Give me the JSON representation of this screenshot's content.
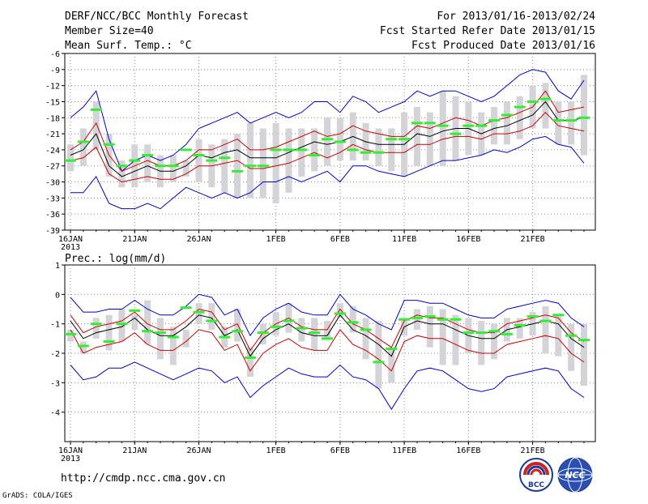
{
  "header": {
    "title": "DERF/NCC/BCC Monthly Forecast",
    "member_size": "Member Size=40",
    "variable": "Mean Surf. Temp.: °C",
    "period": "For 2013/01/16-2013/02/24",
    "started": "Fcst Started Refer Date 2013/01/15",
    "produced": "Fcst Produced Date 2013/01/16"
  },
  "footer": {
    "url": "http://cmdp.ncc.cma.gov.cn",
    "grads": "GrADS: COLA/IGES",
    "logo_left_text": "BCC",
    "logo_right_text": "NCC"
  },
  "colors": {
    "envelope": "#0000cc",
    "spread": "#cc0000",
    "mean": "#000000",
    "box": "#d3d3d8",
    "median": "#33ee33",
    "grid": "#888888"
  },
  "chart_data": [
    {
      "type": "line",
      "title": "Mean Surf. Temp.: °C",
      "xlabel": "",
      "ylabel": "°C",
      "days": 40,
      "ylim": [
        -39,
        -6
      ],
      "yticks": [
        -6,
        -9,
        -12,
        -15,
        -18,
        -21,
        -24,
        -27,
        -30,
        -33,
        -36,
        -39
      ],
      "xticks": [
        {
          "day": 0,
          "label": "16JAN"
        },
        {
          "day": 5,
          "label": "21JAN"
        },
        {
          "day": 10,
          "label": "26JAN"
        },
        {
          "day": 16,
          "label": "1FEB"
        },
        {
          "day": 21,
          "label": "6FEB"
        },
        {
          "day": 26,
          "label": "11FEB"
        },
        {
          "day": 31,
          "label": "16FEB"
        },
        {
          "day": 36,
          "label": "21FEB"
        }
      ],
      "year_label": "2013",
      "grid": true,
      "series": [
        {
          "name": "max",
          "values": [
            -18,
            -16,
            -13,
            -22,
            -28,
            -26,
            -25,
            -26,
            -25,
            -23,
            -20,
            -19,
            -18,
            -17,
            -19,
            -18,
            -17,
            -18,
            -17,
            -15,
            -15,
            -17,
            -14,
            -15,
            -17,
            -16,
            -15,
            -13,
            -14,
            -13,
            -13,
            -14,
            -15,
            -14,
            -12,
            -10,
            -9,
            -9.5,
            -13,
            -14.5,
            -11
          ]
        },
        {
          "name": "mean_plus_sd",
          "values": [
            -24,
            -22.5,
            -19,
            -25,
            -28,
            -27,
            -26,
            -27,
            -27,
            -26,
            -24,
            -24,
            -23,
            -22,
            -24,
            -24,
            -23.5,
            -22.5,
            -21.5,
            -20.5,
            -21.5,
            -21,
            -19.5,
            -20.5,
            -21,
            -21.5,
            -21.5,
            -19.5,
            -20,
            -19,
            -18,
            -18.5,
            -19.5,
            -18.5,
            -18,
            -17,
            -16,
            -13,
            -17,
            -16.5,
            -16
          ]
        },
        {
          "name": "mean",
          "values": [
            -25,
            -24,
            -21,
            -27,
            -29,
            -28,
            -27,
            -28,
            -28,
            -27,
            -25,
            -25.5,
            -24.5,
            -24,
            -25.5,
            -25.5,
            -25.5,
            -24.5,
            -23.5,
            -22.5,
            -23,
            -22.5,
            -21.5,
            -22.5,
            -23,
            -23,
            -23,
            -21,
            -21.5,
            -20.5,
            -20,
            -20,
            -21,
            -20,
            -19.5,
            -18.5,
            -17.5,
            -15,
            -18.5,
            -18.5,
            -18
          ]
        },
        {
          "name": "mean_minus_sd",
          "values": [
            -26,
            -25.5,
            -23.5,
            -28.5,
            -30,
            -29.5,
            -29,
            -29.5,
            -29.5,
            -28.5,
            -27,
            -27,
            -26.5,
            -26,
            -27.5,
            -27.5,
            -27,
            -26.5,
            -25.5,
            -24.5,
            -25.5,
            -24.5,
            -23,
            -24,
            -24.5,
            -24.5,
            -24.5,
            -23,
            -23,
            -22,
            -21.5,
            -21.5,
            -22,
            -21,
            -21,
            -20.5,
            -19.5,
            -17,
            -19.5,
            -20,
            -20.5
          ]
        },
        {
          "name": "min",
          "values": [
            -32,
            -32,
            -29,
            -34,
            -35,
            -35,
            -34,
            -35,
            -33,
            -31,
            -32,
            -33,
            -32,
            -33,
            -32,
            -30,
            -30,
            -29,
            -30,
            -29,
            -28,
            -30,
            -27,
            -27,
            -28,
            -28.5,
            -29,
            -28,
            -27,
            -26,
            -26,
            -25.5,
            -25,
            -24,
            -24.5,
            -23.5,
            -22,
            -21.5,
            -23,
            -23.5,
            -26.5
          ]
        },
        {
          "name": "box_top",
          "values": [
            -23,
            -20,
            -15,
            -21,
            -26,
            -23,
            -23,
            -25,
            -25,
            -26,
            -22,
            -23,
            -22,
            -21,
            -19,
            -20,
            -19,
            -20,
            -20,
            -20,
            -18,
            -18,
            -17,
            -19,
            -20,
            -20,
            -17,
            -16,
            -17,
            -13,
            -14,
            -15,
            -17,
            -16,
            -15,
            -14,
            -12,
            -11.5,
            -15,
            -15,
            -10
          ]
        },
        {
          "name": "box_bottom",
          "values": [
            -28,
            -27,
            -24,
            -29,
            -31,
            -31,
            -30,
            -31,
            -30,
            -29,
            -30,
            -31,
            -32,
            -33,
            -33,
            -33,
            -34,
            -32,
            -29,
            -28,
            -27,
            -26,
            -26,
            -26,
            -27,
            -28,
            -29,
            -27,
            -27,
            -27,
            -26,
            -25,
            -25,
            -23,
            -23,
            -22,
            -20,
            -20,
            -23,
            -23,
            -25
          ]
        },
        {
          "name": "median",
          "values": [
            -26,
            -22.5,
            -16.5,
            -23,
            -27,
            -26,
            -25,
            -27,
            -27,
            -24,
            -25,
            -26,
            -25.5,
            -28,
            -27,
            -27,
            -24,
            -24,
            -24,
            -25,
            -22,
            -22.5,
            -24,
            -24.5,
            -24.5,
            -22,
            -22,
            -19,
            -19,
            -19.5,
            -21,
            -19.5,
            -19.5,
            -18.5,
            -17.5,
            -16,
            -15,
            -14.5,
            -18.5,
            -18.5,
            -18
          ]
        }
      ]
    },
    {
      "type": "line",
      "title": "Prec.: log(mm/d)",
      "xlabel": "",
      "ylabel": "log(mm/d)",
      "days": 40,
      "ylim": [
        -5,
        1
      ],
      "yticks": [
        1,
        0,
        -1,
        -2,
        -3,
        -4
      ],
      "xticks": [
        {
          "day": 0,
          "label": "16JAN"
        },
        {
          "day": 5,
          "label": "21JAN"
        },
        {
          "day": 10,
          "label": "26JAN"
        },
        {
          "day": 16,
          "label": "1FEB"
        },
        {
          "day": 21,
          "label": "6FEB"
        },
        {
          "day": 26,
          "label": "11FEB"
        },
        {
          "day": 31,
          "label": "16FEB"
        },
        {
          "day": 36,
          "label": "21FEB"
        }
      ],
      "year_label": "2013",
      "grid": true,
      "series": [
        {
          "name": "max",
          "values": [
            -0.1,
            -0.6,
            -0.6,
            -0.5,
            -0.5,
            -0.2,
            -0.5,
            -0.7,
            -0.7,
            -0.4,
            0.0,
            -0.1,
            -0.7,
            -0.5,
            -1.4,
            -0.8,
            -0.5,
            -0.3,
            -0.6,
            -0.7,
            -0.7,
            0.0,
            -0.5,
            -0.7,
            -1.0,
            -1.2,
            -0.2,
            -0.2,
            -0.3,
            -0.3,
            -0.5,
            -0.7,
            -0.8,
            -0.8,
            -0.5,
            -0.4,
            -0.3,
            -0.2,
            -0.3,
            -0.8,
            -1.1
          ]
        },
        {
          "name": "mean_plus_sd",
          "values": [
            -0.7,
            -1.3,
            -1.1,
            -1.0,
            -0.9,
            -0.6,
            -1.0,
            -1.2,
            -1.2,
            -0.9,
            -0.5,
            -0.6,
            -1.2,
            -1.0,
            -1.9,
            -1.3,
            -1.0,
            -0.8,
            -1.1,
            -1.2,
            -1.2,
            -0.5,
            -1.0,
            -1.2,
            -1.5,
            -1.8,
            -0.9,
            -0.7,
            -0.8,
            -0.8,
            -1.0,
            -1.2,
            -1.3,
            -1.3,
            -1.0,
            -0.9,
            -0.8,
            -0.7,
            -0.8,
            -1.3,
            -1.6
          ]
        },
        {
          "name": "mean",
          "values": [
            -0.9,
            -1.5,
            -1.3,
            -1.2,
            -1.1,
            -0.8,
            -1.2,
            -1.4,
            -1.4,
            -1.1,
            -0.7,
            -0.8,
            -1.4,
            -1.2,
            -2.1,
            -1.5,
            -1.2,
            -1.0,
            -1.3,
            -1.4,
            -1.4,
            -0.7,
            -1.2,
            -1.4,
            -1.7,
            -2.1,
            -1.1,
            -0.9,
            -1.0,
            -1.0,
            -1.2,
            -1.4,
            -1.5,
            -1.5,
            -1.2,
            -1.1,
            -1.0,
            -0.9,
            -1.0,
            -1.5,
            -1.8
          ]
        },
        {
          "name": "mean_minus_sd",
          "values": [
            -1.2,
            -2.0,
            -1.8,
            -1.7,
            -1.6,
            -1.3,
            -1.7,
            -1.9,
            -1.9,
            -1.6,
            -1.2,
            -1.3,
            -1.9,
            -1.7,
            -2.6,
            -2.0,
            -1.7,
            -1.5,
            -1.8,
            -1.9,
            -1.9,
            -1.2,
            -1.7,
            -1.9,
            -2.2,
            -2.6,
            -1.6,
            -1.4,
            -1.5,
            -1.5,
            -1.7,
            -1.9,
            -2.0,
            -2.0,
            -1.7,
            -1.6,
            -1.5,
            -1.4,
            -1.5,
            -2.0,
            -2.3
          ]
        },
        {
          "name": "min",
          "values": [
            -2.4,
            -2.9,
            -2.8,
            -2.5,
            -2.5,
            -2.3,
            -2.5,
            -2.7,
            -2.9,
            -2.7,
            -2.5,
            -2.6,
            -3.0,
            -2.8,
            -3.5,
            -3.1,
            -2.8,
            -2.5,
            -2.7,
            -2.8,
            -2.8,
            -2.4,
            -2.8,
            -2.9,
            -3.2,
            -3.9,
            -3.2,
            -2.6,
            -2.5,
            -2.6,
            -2.9,
            -3.2,
            -3.3,
            -3.2,
            -2.8,
            -2.7,
            -2.6,
            -2.5,
            -2.6,
            -3.2,
            -3.5
          ]
        },
        {
          "name": "box_top",
          "values": [
            -1.2,
            -1.6,
            -0.8,
            -0.7,
            -0.5,
            -0.7,
            -0.2,
            -0.8,
            -1.1,
            -1.2,
            -0.3,
            -0.3,
            -1.1,
            -0.5,
            -1.8,
            -1.0,
            -0.6,
            -0.3,
            -0.8,
            -0.8,
            -0.9,
            -0.3,
            -0.4,
            -0.8,
            -0.9,
            -1.8,
            -0.8,
            -0.5,
            -0.4,
            -0.5,
            -0.7,
            -0.8,
            -0.9,
            -1.0,
            -0.8,
            -0.8,
            -0.6,
            -0.4,
            -0.7,
            -1.0,
            -1.0
          ]
        },
        {
          "name": "box_bottom",
          "values": [
            -1.6,
            -2.0,
            -1.5,
            -1.9,
            -1.6,
            -1.2,
            -1.7,
            -2.2,
            -2.4,
            -1.8,
            -1.0,
            -1.2,
            -1.8,
            -1.6,
            -2.8,
            -1.7,
            -1.4,
            -1.3,
            -1.6,
            -1.9,
            -1.5,
            -0.8,
            -1.3,
            -2.2,
            -3.2,
            -3.0,
            -1.4,
            -1.2,
            -1.8,
            -2.4,
            -2.4,
            -2.0,
            -2.4,
            -2.2,
            -1.6,
            -1.5,
            -1.4,
            -2.0,
            -2.1,
            -2.6,
            -3.1
          ]
        },
        {
          "name": "median",
          "values": [
            -1.35,
            -1.75,
            -1.0,
            -1.6,
            -1.0,
            -0.55,
            -1.25,
            -1.3,
            -1.45,
            -0.45,
            -0.6,
            -0.9,
            -1.45,
            -1.25,
            -2.15,
            -1.3,
            -1.1,
            -0.9,
            -1.15,
            -1.3,
            -1.5,
            -0.65,
            -0.95,
            -1.2,
            -2.3,
            -1.85,
            -0.85,
            -0.8,
            -0.75,
            -0.85,
            -0.85,
            -1.3,
            -1.3,
            -1.25,
            -1.35,
            -1.05,
            -0.75,
            -0.9,
            -0.7,
            -1.4,
            -1.55
          ]
        }
      ]
    }
  ]
}
